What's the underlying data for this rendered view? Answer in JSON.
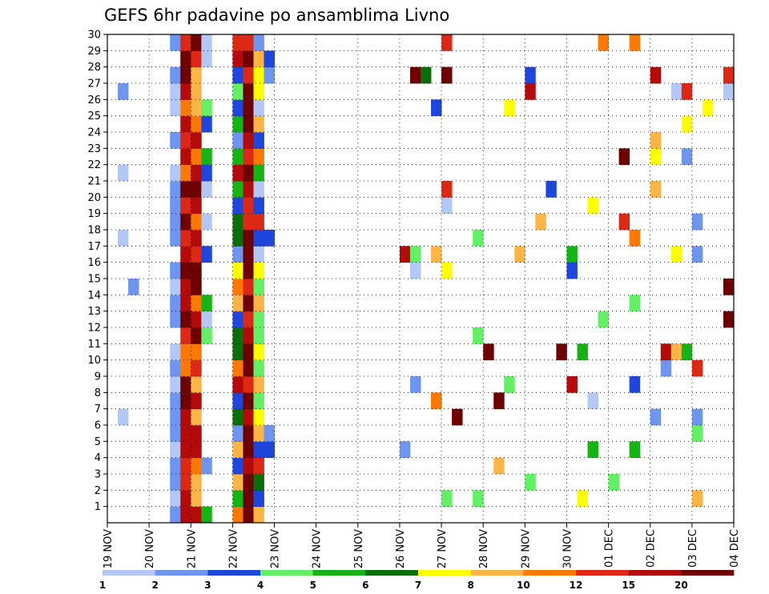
{
  "chart_data": {
    "type": "heatmap",
    "title": "GEFS 6hr padavine po ansamblima Livno",
    "xlabel": "",
    "ylabel": "",
    "x_tick_labels": [
      "19 NOV",
      "20 NOV",
      "21 NOV",
      "22 NOV",
      "23 NOV",
      "24 NOV",
      "25 NOV",
      "26 NOV",
      "27 NOV",
      "28 NOV",
      "29 NOV",
      "30 NOV",
      "01 DEC",
      "02 DEC",
      "03 DEC",
      "04 DEC"
    ],
    "y_tick_labels": [
      "1",
      "2",
      "3",
      "4",
      "5",
      "6",
      "7",
      "8",
      "9",
      "10",
      "11",
      "12",
      "13",
      "14",
      "15",
      "16",
      "17",
      "18",
      "19",
      "20",
      "21",
      "22",
      "23",
      "24",
      "25",
      "26",
      "27",
      "28",
      "29",
      "30"
    ],
    "grid": true,
    "colorbar": {
      "colors": [
        "#b4c8f8",
        "#6e96f0",
        "#1e46dc",
        "#64f064",
        "#14b414",
        "#0a6e0a",
        "#ffff00",
        "#ffb446",
        "#ff7800",
        "#dc2814",
        "#b40a0a",
        "#6e0000"
      ],
      "labels": [
        "1",
        "2",
        "3",
        "4",
        "5",
        "6",
        "7",
        "8",
        "10",
        "12",
        "15",
        "20"
      ]
    },
    "runs": [
      {
        "m": 0,
        "row": [
          [
            2,
            1
          ],
          [
            4,
            11
          ],
          [
            5,
            11
          ],
          [
            6,
            10
          ],
          [
            7,
            8
          ],
          [
            8,
            2
          ],
          [
            9,
            9
          ],
          [
            10,
            12
          ],
          [
            11,
            8
          ],
          [
            12,
            5
          ],
          [
            13,
            2
          ],
          [
            15,
            5
          ],
          [
            7,
            8
          ],
          [
            16,
            2
          ],
          [
            6,
            1
          ],
          [
            9,
            2
          ],
          [
            10,
            6
          ],
          [
            11,
            8
          ],
          [
            12,
            11
          ],
          [
            13,
            2
          ],
          [
            15,
            1
          ],
          [
            18,
            1
          ],
          [
            1,
            3
          ],
          [
            16,
            1
          ],
          [
            2,
            1
          ],
          [
            9,
            1
          ],
          [
            11,
            2
          ],
          [
            21,
            2
          ],
          [
            10,
            2
          ],
          [
            1,
            3
          ],
          [
            8,
            3
          ],
          [
            12,
            5
          ],
          [
            3,
            3
          ],
          [
            2,
            1
          ],
          [
            16,
            3
          ],
          [
            1,
            2
          ],
          [
            5,
            1
          ],
          [
            17,
            3
          ],
          [
            16,
            3
          ],
          [
            3,
            3
          ],
          [
            4,
            3
          ],
          [
            1,
            1
          ],
          [
            18,
            2
          ],
          [
            5,
            12
          ],
          [
            28,
            1
          ],
          [
            29,
            1
          ],
          [
            44,
            2
          ],
          [
            45,
            1
          ],
          [
            46,
            2
          ],
          [
            47,
            1
          ],
          [
            50,
            2
          ],
          [
            51,
            2
          ],
          [
            52,
            3
          ],
          [
            53,
            1
          ],
          [
            54,
            1
          ],
          [
            59,
            1
          ],
          [
            60,
            1
          ],
          [
            62,
            1
          ],
          [
            63,
            2
          ],
          [
            66,
            1
          ],
          [
            67,
            2
          ],
          [
            68,
            1
          ],
          [
            69,
            2
          ],
          [
            70,
            3
          ],
          [
            71,
            1
          ],
          [
            73,
            1
          ],
          [
            76,
            1
          ],
          [
            77,
            2
          ],
          [
            79,
            1
          ],
          [
            80,
            2
          ],
          [
            81,
            1
          ],
          [
            85,
            1
          ],
          [
            95,
            2
          ],
          [
            99,
            1
          ],
          [
            110,
            1
          ],
          [
            112,
            1
          ],
          [
            113,
            1
          ],
          [
            114,
            2
          ],
          [
            116,
            1
          ],
          [
            117,
            1
          ],
          [
            118,
            1
          ],
          [
            119,
            1
          ]
        ]
      }
    ]
  }
}
